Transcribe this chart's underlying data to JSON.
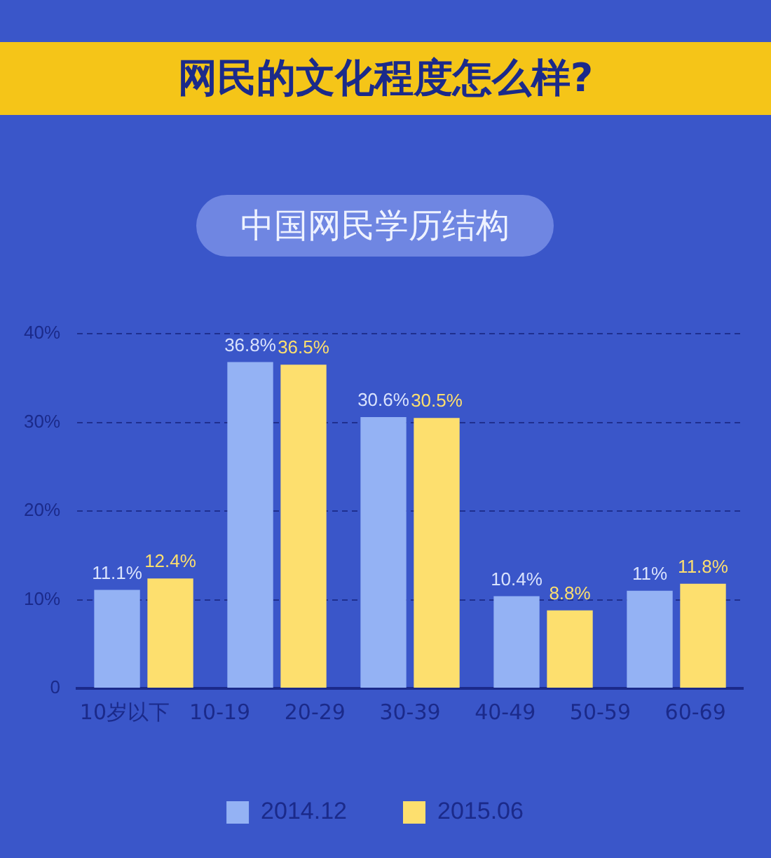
{
  "chart_data": {
    "type": "bar",
    "title": "网民的文化程度怎么样?",
    "subtitle": "中国网民学历结构",
    "categories": [
      null,
      null,
      null,
      null,
      null
    ],
    "series": [
      {
        "name": "2014.12",
        "color": "#94b2f4",
        "values": [
          11.1,
          36.8,
          30.6,
          10.4,
          11
        ],
        "value_labels": [
          "11.1%",
          "36.8%",
          "30.6%",
          "10.4%",
          "11%"
        ]
      },
      {
        "name": "2015.06",
        "color": "#fddf6e",
        "values": [
          12.4,
          36.5,
          30.5,
          8.8,
          11.8
        ],
        "value_labels": [
          "12.4%",
          "36.5%",
          "30.5%",
          "8.8%",
          "11.8%"
        ]
      }
    ],
    "ylim": [
      0,
      40
    ],
    "yticks": [
      {
        "value": 0,
        "label": "0"
      },
      {
        "value": 10,
        "label": "10%"
      },
      {
        "value": 20,
        "label": "20%"
      },
      {
        "value": 30,
        "label": "30%"
      },
      {
        "value": 40,
        "label": "40%"
      }
    ],
    "grid": "y",
    "legend": "bottom",
    "tick_labels": "y",
    "annotations": [
      "10岁以下",
      "10-19",
      "20-29",
      "30-39",
      "40-49",
      "50-59",
      "60-69"
    ]
  }
}
